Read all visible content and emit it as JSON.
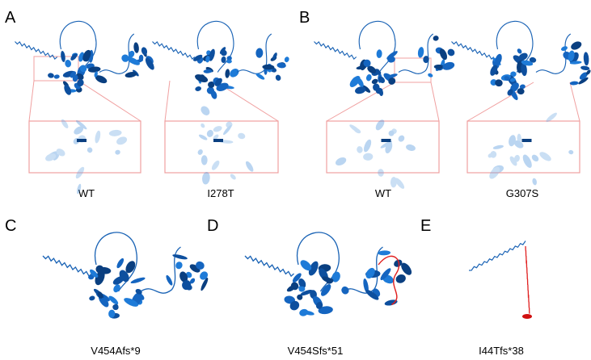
{
  "panels": [
    {
      "label": "A",
      "captions": [
        "WT",
        "I278T"
      ]
    },
    {
      "label": "B",
      "captions": [
        "WT",
        "G307S"
      ]
    },
    {
      "label": "C",
      "captions": [
        "V454Afs*9"
      ]
    },
    {
      "label": "D",
      "captions": [
        "V454Sfs*51"
      ]
    },
    {
      "label": "E",
      "captions": [
        "I44Tfs*38"
      ]
    }
  ]
}
